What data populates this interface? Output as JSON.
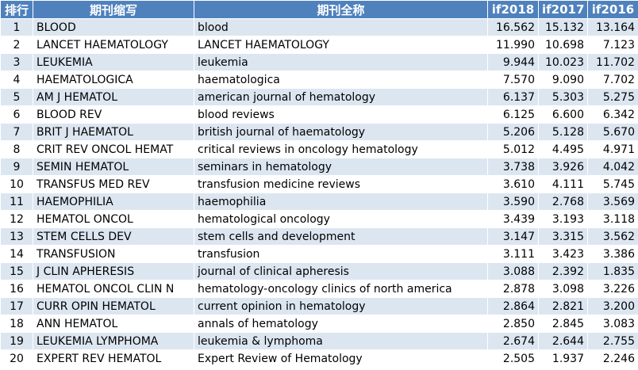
{
  "header": [
    "排行",
    "期刊缩写",
    "期刊全称",
    "if2018",
    "if2017",
    "if2016"
  ],
  "table": {
    "rows": [
      [
        1,
        "BLOOD",
        "blood",
        "16.562",
        "15.132",
        "13.164"
      ],
      [
        2,
        "LANCET HAEMATOLOGY",
        "LANCET HAEMATOLOGY",
        "11.990",
        "10.698",
        "7.123"
      ],
      [
        3,
        "LEUKEMIA",
        "leukemia",
        "9.944",
        "10.023",
        "11.702"
      ],
      [
        4,
        "HAEMATOLOGICA",
        "haematologica",
        "7.570",
        "9.090",
        "7.702"
      ],
      [
        5,
        "AM J HEMATOL",
        "american journal of hematology",
        "6.137",
        "5.303",
        "5.275"
      ],
      [
        6,
        "BLOOD REV",
        "blood reviews",
        "6.125",
        "6.600",
        "6.342"
      ],
      [
        7,
        "BRIT J HAEMATOL",
        "british journal of haematology",
        "5.206",
        "5.128",
        "5.670"
      ],
      [
        8,
        "CRIT REV ONCOL HEMAT",
        "critical reviews in oncology hematology",
        "5.012",
        "4.495",
        "4.971"
      ],
      [
        9,
        "SEMIN HEMATOL",
        "seminars in hematology",
        "3.738",
        "3.926",
        "4.042"
      ],
      [
        10,
        "TRANSFUS MED REV",
        "transfusion medicine reviews",
        "3.610",
        "4.111",
        "5.745"
      ],
      [
        11,
        "HAEMOPHILIA",
        "haemophilia",
        "3.590",
        "2.768",
        "3.569"
      ],
      [
        12,
        "HEMATOL ONCOL",
        "hematological oncology",
        "3.439",
        "3.193",
        "3.118"
      ],
      [
        13,
        "STEM CELLS DEV",
        "stem cells and development",
        "3.147",
        "3.315",
        "3.562"
      ],
      [
        14,
        "TRANSFUSION",
        "transfusion",
        "3.111",
        "3.423",
        "3.386"
      ],
      [
        15,
        "J CLIN APHERESIS",
        "journal of clinical apheresis",
        "3.088",
        "2.392",
        "1.835"
      ],
      [
        16,
        "HEMATOL ONCOL CLIN N",
        "hematology-oncology clinics of north america",
        "2.878",
        "3.098",
        "3.226"
      ],
      [
        17,
        "CURR OPIN HEMATOL",
        "current opinion in hematology",
        "2.864",
        "2.821",
        "3.200"
      ],
      [
        18,
        "ANN HEMATOL",
        "annals of hematology",
        "2.850",
        "2.845",
        "3.083"
      ],
      [
        19,
        "LEUKEMIA LYMPHOMA",
        "leukemia & lymphoma",
        "2.674",
        "2.644",
        "2.755"
      ],
      [
        20,
        "EXPERT REV HEMATOL",
        "Expert Review of Hematology",
        "2.505",
        "1.937",
        "2.246"
      ]
    ]
  }
}
